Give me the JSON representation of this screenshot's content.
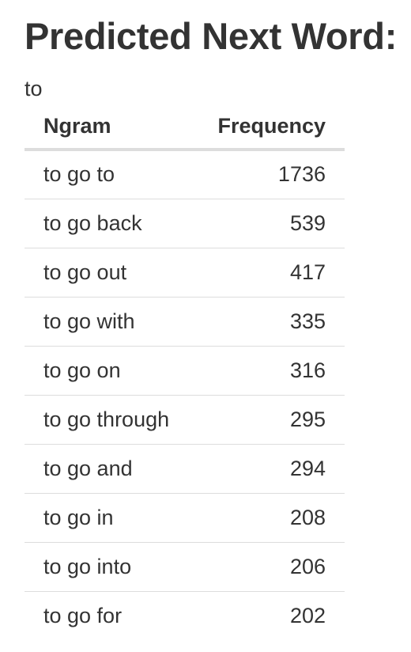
{
  "heading": "Predicted Next Word:",
  "input_word": "to",
  "table": {
    "columns": [
      "Ngram",
      "Frequency"
    ],
    "rows": [
      {
        "ngram": "to go to",
        "frequency": "1736"
      },
      {
        "ngram": "to go back",
        "frequency": "539"
      },
      {
        "ngram": "to go out",
        "frequency": "417"
      },
      {
        "ngram": "to go with",
        "frequency": "335"
      },
      {
        "ngram": "to go on",
        "frequency": "316"
      },
      {
        "ngram": "to go through",
        "frequency": "295"
      },
      {
        "ngram": "to go and",
        "frequency": "294"
      },
      {
        "ngram": "to go in",
        "frequency": "208"
      },
      {
        "ngram": "to go into",
        "frequency": "206"
      },
      {
        "ngram": "to go for",
        "frequency": "202"
      }
    ]
  }
}
